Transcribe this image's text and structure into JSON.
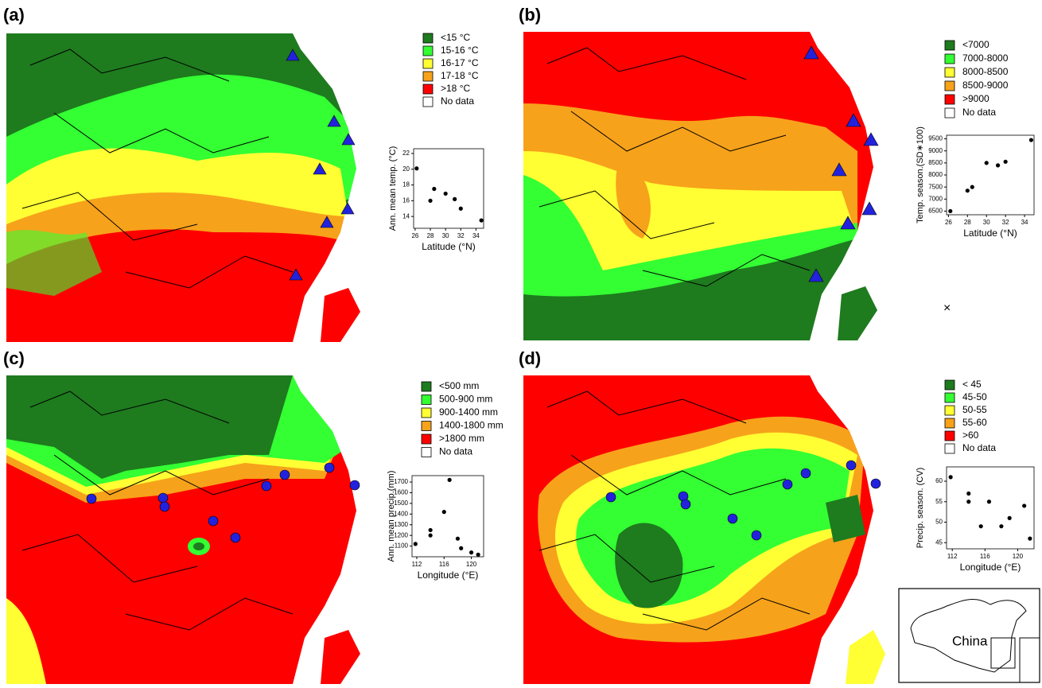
{
  "panels": [
    {
      "label": "(a)",
      "legend": [
        {
          "label": "<15 °C",
          "color": "#1e7b1e"
        },
        {
          "label": "15-16 °C",
          "color": "#33ff33"
        },
        {
          "label": "16-17 °C",
          "color": "#ffff33"
        },
        {
          "label": "17-18 °C",
          "color": "#f7a21b"
        },
        {
          "label": ">18 °C",
          "color": "#ff0000"
        },
        {
          "label": "No data",
          "color": "#ffffff"
        }
      ]
    },
    {
      "label": "(b)",
      "legend": [
        {
          "label": "<7000",
          "color": "#1e7b1e"
        },
        {
          "label": "7000-8000",
          "color": "#33ff33"
        },
        {
          "label": "8000-8500",
          "color": "#ffff33"
        },
        {
          "label": "8500-9000",
          "color": "#f7a21b"
        },
        {
          "label": ">9000",
          "color": "#ff0000"
        },
        {
          "label": "No data",
          "color": "#ffffff"
        }
      ],
      "stray_mark": "×"
    },
    {
      "label": "(c)",
      "legend": [
        {
          "label": "<500   mm",
          "color": "#1e7b1e"
        },
        {
          "label": "500-900   mm",
          "color": "#33ff33"
        },
        {
          "label": "900-1400 mm",
          "color": "#ffff33"
        },
        {
          "label": "1400-1800 mm",
          "color": "#f7a21b"
        },
        {
          "label": ">1800 mm",
          "color": "#ff0000"
        },
        {
          "label": "No data",
          "color": "#ffffff"
        }
      ]
    },
    {
      "label": "(d)",
      "legend": [
        {
          "label": "< 45",
          "color": "#1e7b1e"
        },
        {
          "label": "45-50",
          "color": "#33ff33"
        },
        {
          "label": "50-55",
          "color": "#ffff33"
        },
        {
          "label": "55-60",
          "color": "#f7a21b"
        },
        {
          "label": ">60",
          "color": "#ff0000"
        },
        {
          "label": "No data",
          "color": "#ffffff"
        }
      ],
      "inset_label": "China"
    }
  ],
  "chart_data": [
    {
      "type": "scatter",
      "x_label": "Latitude (°N)",
      "y_label": "Ann. mean temp. (°C)",
      "x": [
        26.2,
        28,
        28.5,
        30,
        31.2,
        32,
        34.7
      ],
      "values": [
        20.1,
        16,
        17.5,
        16.9,
        16.2,
        15,
        13.5
      ],
      "xlim": [
        25.8,
        35
      ],
      "ylim": [
        12.5,
        22.6
      ],
      "xticks": [
        26,
        28,
        30,
        32,
        34
      ],
      "yticks": [
        14,
        16,
        18,
        20,
        22
      ],
      "color": "#000000"
    },
    {
      "type": "scatter",
      "x_label": "Latitude (°N)",
      "y_label": "Temp. season.(SD∗100)",
      "x": [
        26.2,
        28,
        28.5,
        30,
        31.2,
        32,
        34.7
      ],
      "values": [
        6500,
        7350,
        7500,
        8500,
        8400,
        8550,
        9450
      ],
      "xlim": [
        25.8,
        35
      ],
      "ylim": [
        6350,
        9650
      ],
      "xticks": [
        26,
        28,
        30,
        32,
        34
      ],
      "yticks": [
        6500,
        7000,
        7500,
        8000,
        8500,
        9000,
        9500
      ],
      "color": "#000000"
    },
    {
      "type": "scatter",
      "x_label": "Longitude (°E)",
      "y_label": "Ann. mean precip.(mm)",
      "x": [
        111.8,
        114,
        114,
        116,
        116.8,
        118,
        118.5,
        120,
        121
      ],
      "values": [
        1120,
        1200,
        1250,
        1420,
        1720,
        1170,
        1080,
        1040,
        1020
      ],
      "xlim": [
        111.3,
        121.8
      ],
      "ylim": [
        1000,
        1760
      ],
      "xticks": [
        112,
        116,
        120
      ],
      "yticks": [
        1100,
        1200,
        1300,
        1400,
        1500,
        1600,
        1700
      ],
      "color": "#000000"
    },
    {
      "type": "scatter",
      "x_label": "Longitude (°E)",
      "y_label": "Precip. season. (CV)",
      "x": [
        111.8,
        114,
        114,
        115.5,
        116.5,
        118,
        119,
        120.8,
        121.5
      ],
      "values": [
        61,
        57,
        55,
        49,
        55,
        49,
        51,
        54,
        46
      ],
      "xlim": [
        111.3,
        122
      ],
      "ylim": [
        43.5,
        63.5
      ],
      "xticks": [
        112,
        116,
        120
      ],
      "yticks": [
        45,
        50,
        55,
        60
      ],
      "color": "#000000"
    }
  ]
}
